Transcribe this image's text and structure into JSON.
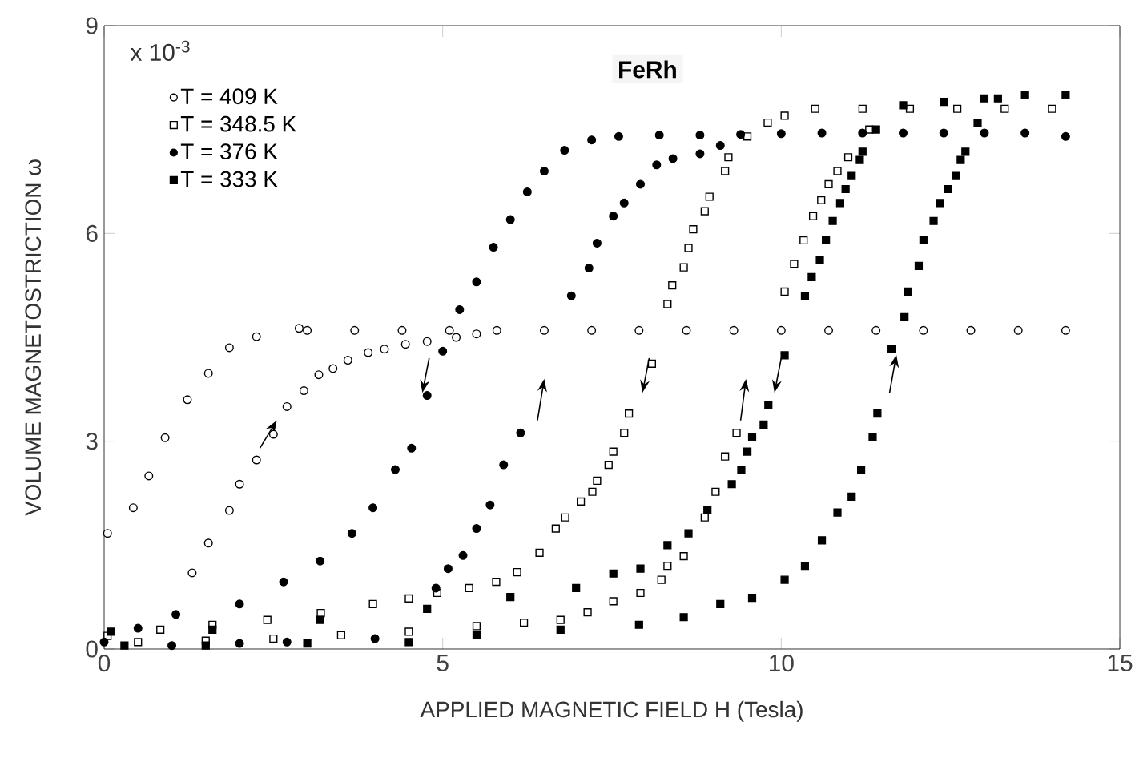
{
  "chart_data": {
    "type": "scatter",
    "title": "FeRh",
    "xlabel": "APPLIED MAGNETIC FIELD H (Tesla)",
    "ylabel": "VOLUME MAGNETOSTRICTION ω",
    "annotations": [
      "x 10$^{-3}$"
    ],
    "xlim": [
      0,
      15
    ],
    "ylim": [
      0,
      9
    ],
    "xticks": [
      0,
      5,
      10,
      15
    ],
    "yticks": [
      0,
      3,
      6,
      9
    ],
    "legend": "top left",
    "series": [
      {
        "name": "T = 409 K",
        "color": "#000000",
        "marker": "circle",
        "x": [
          1.3,
          1.54,
          1.85,
          2.0,
          2.25,
          2.5,
          2.7,
          2.95,
          3.17,
          3.38,
          3.6,
          3.9,
          4.14,
          4.45,
          4.77,
          5.2,
          5.5,
          14.2,
          13.5,
          12.8,
          12.1,
          11.4,
          10.7,
          10.0,
          9.3,
          8.6,
          7.9,
          7.2,
          6.5,
          5.8,
          5.1,
          4.4,
          3.7,
          3.0,
          2.88,
          2.25,
          1.85,
          1.54,
          1.23,
          0.9,
          0.66,
          0.43,
          0.05
        ],
        "values": [
          1.1,
          1.53,
          2.0,
          2.38,
          2.73,
          3.1,
          3.5,
          3.73,
          3.96,
          4.05,
          4.17,
          4.28,
          4.33,
          4.4,
          4.44,
          4.5,
          4.55,
          4.6,
          4.6,
          4.6,
          4.6,
          4.6,
          4.6,
          4.6,
          4.6,
          4.6,
          4.6,
          4.6,
          4.6,
          4.6,
          4.6,
          4.6,
          4.6,
          4.6,
          4.63,
          4.51,
          4.35,
          3.98,
          3.6,
          3.05,
          2.5,
          2.04,
          1.67
        ]
      },
      {
        "name": "T = 348.5 K",
        "color": "#000000",
        "marker": "square",
        "x": [
          0.05,
          0.83,
          1.6,
          2.41,
          3.2,
          3.97,
          4.5,
          4.92,
          5.39,
          5.79,
          6.1,
          6.43,
          6.67,
          6.81,
          7.04,
          7.21,
          7.28,
          7.45,
          7.52,
          7.68,
          7.75,
          8.09,
          8.32,
          8.39,
          8.56,
          8.63,
          8.7,
          8.87,
          8.94,
          9.17,
          9.22,
          9.5,
          9.8,
          10.05,
          10.5,
          11.2,
          11.9,
          12.6,
          13.3,
          14.0,
          0.5,
          1.5,
          2.5,
          3.5,
          4.5,
          5.5,
          6.2,
          6.74,
          7.14,
          7.52,
          7.92,
          8.23,
          8.32,
          8.56,
          8.87,
          9.03,
          9.17,
          9.34,
          10.05,
          10.19,
          10.33,
          10.47,
          10.59,
          10.7,
          10.83,
          10.99,
          11.3
        ],
        "values": [
          0.19,
          0.28,
          0.35,
          0.42,
          0.52,
          0.65,
          0.73,
          0.81,
          0.88,
          0.97,
          1.11,
          1.39,
          1.74,
          1.9,
          2.13,
          2.27,
          2.43,
          2.66,
          2.85,
          3.12,
          3.4,
          4.12,
          4.98,
          5.25,
          5.51,
          5.79,
          6.06,
          6.32,
          6.53,
          6.9,
          7.1,
          7.4,
          7.6,
          7.7,
          7.8,
          7.8,
          7.8,
          7.8,
          7.8,
          7.8,
          0.1,
          0.12,
          0.15,
          0.2,
          0.25,
          0.33,
          0.38,
          0.42,
          0.53,
          0.69,
          0.81,
          1.0,
          1.2,
          1.34,
          1.9,
          2.27,
          2.78,
          3.12,
          5.16,
          5.56,
          5.9,
          6.25,
          6.48,
          6.71,
          6.9,
          7.1,
          7.5
        ]
      },
      {
        "name": "T = 376 K",
        "color": "#000000",
        "marker": "circle",
        "x": [
          0,
          0.5,
          1.06,
          2.0,
          2.65,
          3.19,
          3.66,
          3.97,
          4.3,
          4.54,
          4.77,
          5.0,
          5.25,
          5.5,
          5.75,
          6.0,
          6.25,
          6.5,
          6.8,
          7.2,
          7.6,
          8.2,
          8.8,
          9.4,
          10.0,
          10.6,
          11.2,
          11.8,
          12.4,
          13.0,
          13.6,
          14.2,
          1.0,
          2.0,
          2.7,
          4.0,
          4.9,
          5.08,
          5.3,
          5.5,
          5.7,
          5.9,
          6.15,
          6.9,
          7.16,
          7.28,
          7.52,
          7.68,
          7.92,
          8.16,
          8.4,
          8.8,
          9.1
        ],
        "values": [
          0.1,
          0.3,
          0.5,
          0.65,
          0.97,
          1.27,
          1.67,
          2.04,
          2.59,
          2.9,
          3.66,
          4.3,
          4.9,
          5.3,
          5.8,
          6.2,
          6.6,
          6.9,
          7.2,
          7.35,
          7.4,
          7.42,
          7.42,
          7.43,
          7.44,
          7.45,
          7.45,
          7.45,
          7.45,
          7.45,
          7.45,
          7.4,
          0.05,
          0.08,
          0.1,
          0.15,
          0.88,
          1.16,
          1.35,
          1.74,
          2.08,
          2.66,
          3.12,
          5.1,
          5.5,
          5.86,
          6.25,
          6.44,
          6.71,
          6.99,
          7.08,
          7.15,
          7.27
        ]
      },
      {
        "name": "T = 333 K",
        "color": "#000000",
        "marker": "square",
        "x": [
          0.3,
          1.5,
          3.0,
          4.5,
          5.5,
          6.74,
          7.9,
          8.56,
          9.1,
          9.57,
          10.05,
          10.35,
          10.6,
          10.83,
          11.04,
          11.18,
          11.35,
          11.42,
          11.63,
          11.82,
          11.87,
          12.03,
          12.1,
          12.25,
          12.34,
          12.46,
          12.58,
          12.65,
          12.72,
          12.9,
          13.2,
          14.2,
          13.6,
          13.0,
          12.4,
          11.8,
          11.4,
          11.2,
          11.16,
          11.04,
          10.95,
          10.87,
          10.76,
          10.66,
          10.57,
          10.45,
          10.35,
          10.05,
          9.81,
          9.74,
          9.57,
          9.5,
          9.41,
          9.27,
          8.91,
          8.63,
          8.32,
          7.92,
          7.52,
          6.97,
          6.0,
          4.77,
          3.19,
          1.6,
          0.1
        ],
        "values": [
          0.05,
          0.05,
          0.08,
          0.1,
          0.2,
          0.28,
          0.35,
          0.46,
          0.65,
          0.74,
          1.0,
          1.2,
          1.57,
          1.97,
          2.2,
          2.59,
          3.06,
          3.4,
          4.33,
          4.79,
          5.16,
          5.53,
          5.9,
          6.18,
          6.44,
          6.64,
          6.83,
          7.06,
          7.18,
          7.6,
          7.95,
          8.0,
          8.0,
          7.95,
          7.9,
          7.85,
          7.5,
          7.18,
          7.06,
          6.83,
          6.64,
          6.44,
          6.18,
          5.9,
          5.62,
          5.37,
          5.09,
          4.24,
          3.52,
          3.24,
          3.06,
          2.85,
          2.59,
          2.38,
          2.01,
          1.67,
          1.5,
          1.16,
          1.09,
          0.88,
          0.75,
          0.58,
          0.42,
          0.28,
          0.25
        ]
      }
    ]
  }
}
